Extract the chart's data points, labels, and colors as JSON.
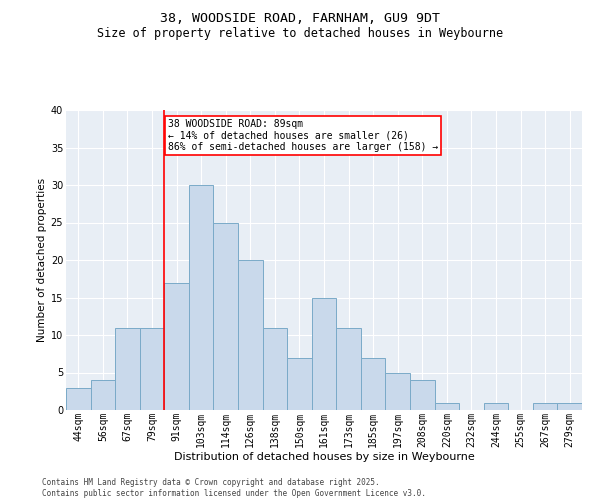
{
  "title_line1": "38, WOODSIDE ROAD, FARNHAM, GU9 9DT",
  "title_line2": "Size of property relative to detached houses in Weybourne",
  "xlabel": "Distribution of detached houses by size in Weybourne",
  "ylabel": "Number of detached properties",
  "categories": [
    "44sqm",
    "56sqm",
    "67sqm",
    "79sqm",
    "91sqm",
    "103sqm",
    "114sqm",
    "126sqm",
    "138sqm",
    "150sqm",
    "161sqm",
    "173sqm",
    "185sqm",
    "197sqm",
    "208sqm",
    "220sqm",
    "232sqm",
    "244sqm",
    "255sqm",
    "267sqm",
    "279sqm"
  ],
  "values": [
    3,
    4,
    11,
    11,
    17,
    30,
    25,
    20,
    11,
    7,
    15,
    11,
    7,
    5,
    4,
    1,
    0,
    1,
    0,
    1,
    1
  ],
  "bar_color": "#c9d9eb",
  "bar_edge_color": "#7aaac8",
  "vline_index": 4,
  "vline_color": "red",
  "annotation_text": "38 WOODSIDE ROAD: 89sqm\n← 14% of detached houses are smaller (26)\n86% of semi-detached houses are larger (158) →",
  "annotation_box_color": "white",
  "annotation_box_edge": "red",
  "background_color": "#e8eef5",
  "grid_color": "white",
  "footer_line1": "Contains HM Land Registry data © Crown copyright and database right 2025.",
  "footer_line2": "Contains public sector information licensed under the Open Government Licence v3.0.",
  "ylim": [
    0,
    40
  ],
  "yticks": [
    0,
    5,
    10,
    15,
    20,
    25,
    30,
    35,
    40
  ],
  "title1_fontsize": 9.5,
  "title2_fontsize": 8.5,
  "ylabel_fontsize": 7.5,
  "xlabel_fontsize": 8,
  "tick_fontsize": 7,
  "annotation_fontsize": 7,
  "footer_fontsize": 5.5
}
